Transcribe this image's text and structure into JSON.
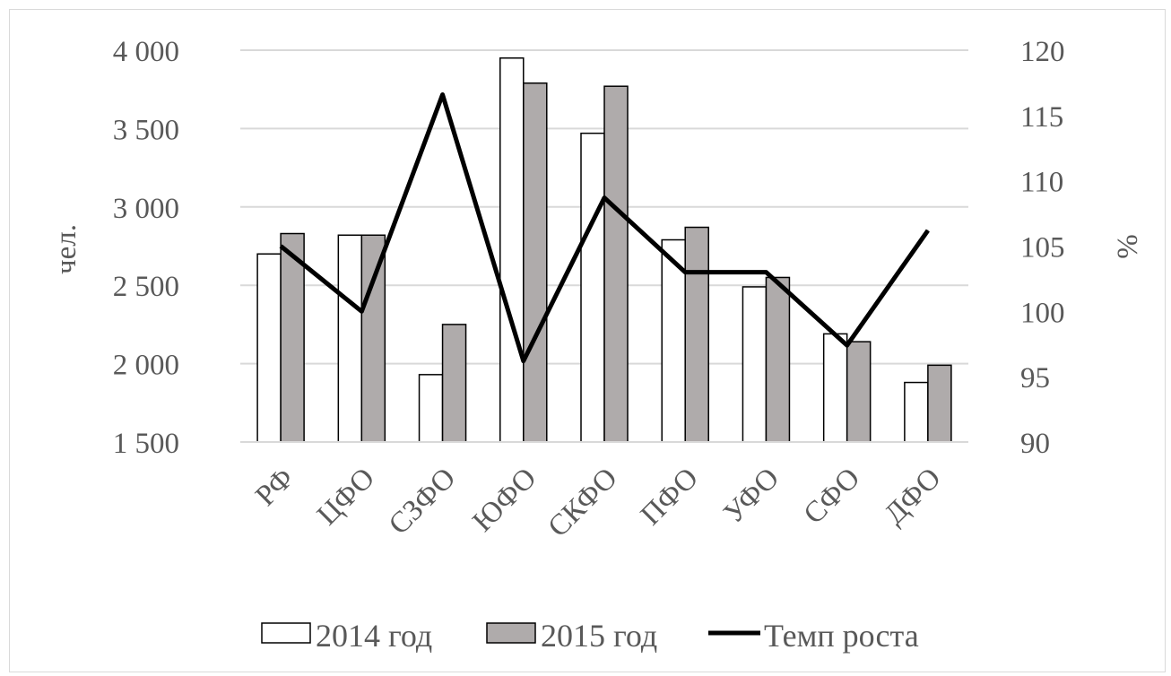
{
  "chart_data": {
    "type": "bar",
    "categories": [
      "РФ",
      "ЦФО",
      "СЗФО",
      "ЮФО",
      "СКФО",
      "ПФО",
      "УФО",
      "СФО",
      "ДФО"
    ],
    "series": [
      {
        "name": "2014 год",
        "type": "bar",
        "axis": "left",
        "color": "#ffffff",
        "values": [
          2700,
          2820,
          1930,
          3950,
          3470,
          2790,
          2490,
          2190,
          1880
        ]
      },
      {
        "name": "2015 год",
        "type": "bar",
        "axis": "left",
        "color": "#afabab",
        "values": [
          2830,
          2820,
          2250,
          3790,
          3770,
          2870,
          2550,
          2140,
          1990
        ]
      },
      {
        "name": "Темп роста",
        "type": "line",
        "axis": "right",
        "color": "#000000",
        "values": [
          105,
          100,
          116.6,
          96.2,
          108.7,
          103,
          103,
          97.4,
          106.2
        ]
      }
    ],
    "left_axis": {
      "label": "чел.",
      "ylim": [
        1500,
        4000
      ],
      "ticks": [
        1500,
        2000,
        2500,
        3000,
        3500,
        4000
      ],
      "tick_labels": [
        "1 500",
        "2 000",
        "2 500",
        "3 000",
        "3 500",
        "4 000"
      ]
    },
    "right_axis": {
      "label": "%",
      "ylim": [
        90,
        120
      ],
      "ticks": [
        90,
        95,
        100,
        105,
        110,
        115,
        120
      ],
      "tick_labels": [
        "90",
        "95",
        "100",
        "105",
        "110",
        "115",
        "120"
      ]
    },
    "grid": true,
    "legend_position": "bottom",
    "gridline_color": "#d9d9d9",
    "bar_outline_color": "#000000"
  }
}
